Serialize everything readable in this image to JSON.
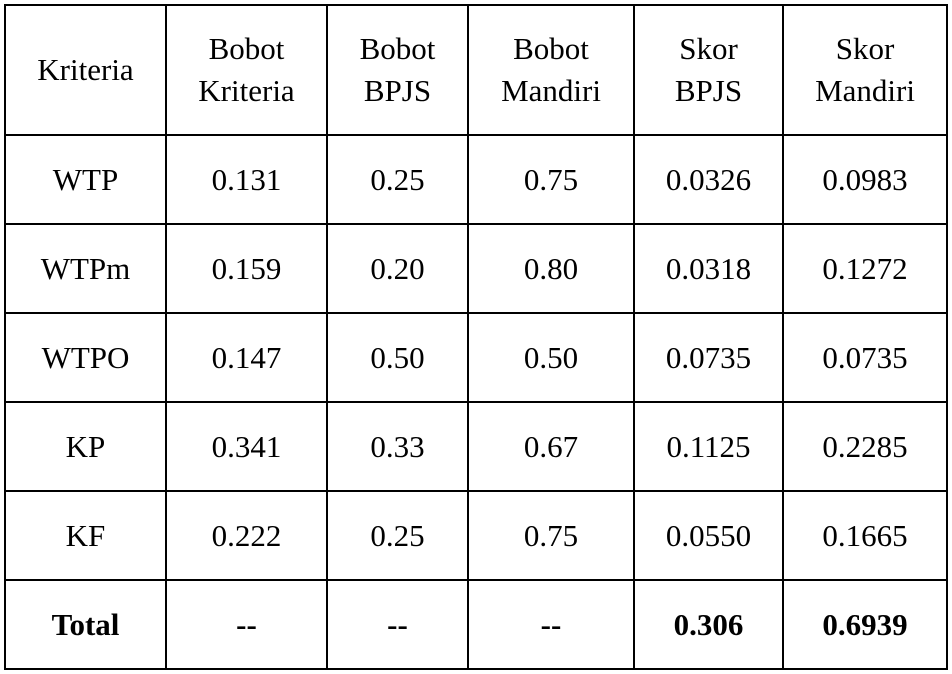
{
  "table": {
    "header": [
      [
        "Kriteria"
      ],
      [
        "Bobot",
        "Kriteria"
      ],
      [
        "Bobot",
        "BPJS"
      ],
      [
        "Bobot",
        "Mandiri"
      ],
      [
        "Skor",
        "BPJS"
      ],
      [
        "Skor",
        "Mandiri"
      ]
    ],
    "rows": [
      [
        "WTP",
        "0.131",
        "0.25",
        "0.75",
        "0.0326",
        "0.0983"
      ],
      [
        "WTPm",
        "0.159",
        "0.20",
        "0.80",
        "0.0318",
        "0.1272"
      ],
      [
        "WTPO",
        "0.147",
        "0.50",
        "0.50",
        "0.0735",
        "0.0735"
      ],
      [
        "KP",
        "0.341",
        "0.33",
        "0.67",
        "0.1125",
        "0.2285"
      ],
      [
        "KF",
        "0.222",
        "0.25",
        "0.75",
        "0.0550",
        "0.1665"
      ]
    ],
    "total": [
      "Total",
      "--",
      "--",
      "--",
      "0.306",
      "0.6939"
    ]
  }
}
